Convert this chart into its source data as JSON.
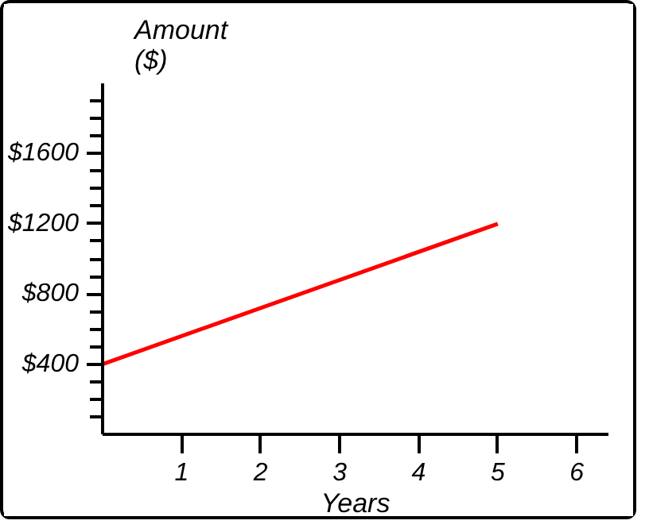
{
  "chart_data": {
    "type": "line",
    "xlabel": "Years",
    "ylabel": "Amount ($)",
    "x": [
      0,
      5
    ],
    "series": [
      {
        "color": "#ff0000",
        "values": [
          400,
          1200
        ]
      }
    ],
    "xlim": [
      0,
      6.4
    ],
    "ylim": [
      0,
      2000
    ],
    "xticks": [
      1,
      2,
      3,
      4,
      5,
      6
    ],
    "yticks": [
      {
        "value": 100,
        "label": null
      },
      {
        "value": 200,
        "label": null
      },
      {
        "value": 300,
        "label": null
      },
      {
        "value": 400,
        "label": "$400"
      },
      {
        "value": 500,
        "label": null
      },
      {
        "value": 600,
        "label": null
      },
      {
        "value": 700,
        "label": null
      },
      {
        "value": 800,
        "label": "$800"
      },
      {
        "value": 900,
        "label": null
      },
      {
        "value": 1000,
        "label": null
      },
      {
        "value": 1100,
        "label": null
      },
      {
        "value": 1200,
        "label": "$1200"
      },
      {
        "value": 1300,
        "label": null
      },
      {
        "value": 1400,
        "label": null
      },
      {
        "value": 1500,
        "label": null
      },
      {
        "value": 1600,
        "label": "$1600"
      },
      {
        "value": 1700,
        "label": null
      },
      {
        "value": 1800,
        "label": null
      },
      {
        "value": 1900,
        "label": null
      }
    ],
    "grid": false,
    "marker": "none",
    "line_style": "solid"
  }
}
